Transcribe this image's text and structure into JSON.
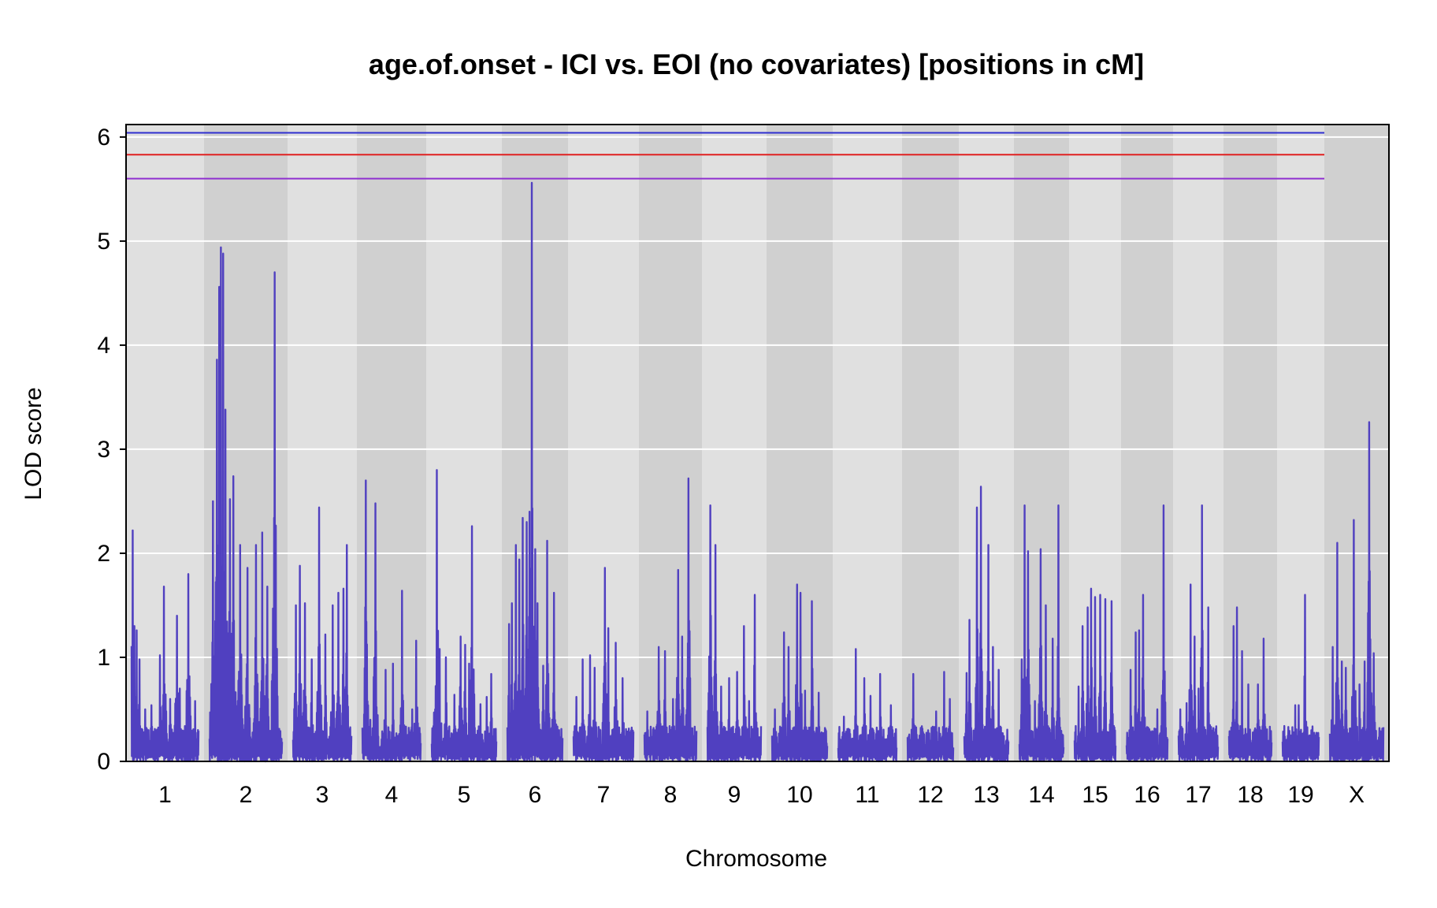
{
  "chart_data": {
    "type": "line",
    "title": "age.of.onset - ICI vs. EOI (no covariates) [positions in cM]",
    "xlabel": "Chromosome",
    "ylabel": "LOD score",
    "ylim": [
      0,
      6
    ],
    "yticks": [
      0,
      1,
      2,
      3,
      4,
      5,
      6
    ],
    "grid": true,
    "series_color": "#5040C0",
    "chromosomes": [
      {
        "name": "1",
        "peaks": [
          [
            0.02,
            2.22
          ],
          [
            0.04,
            1.3
          ],
          [
            0.08,
            1.26
          ],
          [
            0.12,
            0.98
          ],
          [
            0.2,
            0.5
          ],
          [
            0.3,
            0.54
          ],
          [
            0.42,
            1.02
          ],
          [
            0.48,
            1.68
          ],
          [
            0.58,
            0.6
          ],
          [
            0.68,
            1.4
          ],
          [
            0.72,
            0.7
          ],
          [
            0.85,
            1.8
          ],
          [
            0.95,
            0.58
          ]
        ]
      },
      {
        "name": "2",
        "peaks": [
          [
            0.05,
            2.5
          ],
          [
            0.1,
            3.86
          ],
          [
            0.13,
            4.56
          ],
          [
            0.16,
            4.94
          ],
          [
            0.19,
            4.88
          ],
          [
            0.22,
            3.38
          ],
          [
            0.28,
            2.52
          ],
          [
            0.33,
            2.74
          ],
          [
            0.42,
            2.08
          ],
          [
            0.52,
            1.86
          ],
          [
            0.64,
            2.08
          ],
          [
            0.73,
            2.2
          ],
          [
            0.8,
            1.68
          ],
          [
            0.9,
            4.7
          ]
        ]
      },
      {
        "name": "3",
        "peaks": [
          [
            0.05,
            1.5
          ],
          [
            0.12,
            1.88
          ],
          [
            0.2,
            1.52
          ],
          [
            0.32,
            0.98
          ],
          [
            0.45,
            2.44
          ],
          [
            0.55,
            1.22
          ],
          [
            0.68,
            1.5
          ],
          [
            0.78,
            1.62
          ],
          [
            0.86,
            1.66
          ],
          [
            0.92,
            2.08
          ]
        ]
      },
      {
        "name": "4",
        "peaks": [
          [
            0.06,
            2.7
          ],
          [
            0.14,
            0.4
          ],
          [
            0.22,
            2.48
          ],
          [
            0.4,
            0.88
          ],
          [
            0.52,
            0.94
          ],
          [
            0.68,
            1.64
          ],
          [
            0.85,
            0.5
          ],
          [
            0.92,
            1.16
          ]
        ]
      },
      {
        "name": "5",
        "peaks": [
          [
            0.05,
            0.5
          ],
          [
            0.08,
            2.8
          ],
          [
            0.12,
            1.08
          ],
          [
            0.22,
            1.0
          ],
          [
            0.35,
            0.64
          ],
          [
            0.45,
            1.2
          ],
          [
            0.52,
            1.12
          ],
          [
            0.58,
            0.94
          ],
          [
            0.62,
            2.26
          ],
          [
            0.75,
            0.55
          ],
          [
            0.85,
            0.62
          ],
          [
            0.92,
            0.84
          ]
        ]
      },
      {
        "name": "6",
        "peaks": [
          [
            0.03,
            1.32
          ],
          [
            0.08,
            1.52
          ],
          [
            0.15,
            2.08
          ],
          [
            0.22,
            1.94
          ],
          [
            0.28,
            2.34
          ],
          [
            0.35,
            2.3
          ],
          [
            0.4,
            2.4
          ],
          [
            0.44,
            5.56
          ],
          [
            0.5,
            2.04
          ],
          [
            0.55,
            1.52
          ],
          [
            0.65,
            0.92
          ],
          [
            0.72,
            2.12
          ],
          [
            0.85,
            1.62
          ]
        ]
      },
      {
        "name": "7",
        "peaks": [
          [
            0.05,
            0.62
          ],
          [
            0.15,
            0.98
          ],
          [
            0.28,
            1.02
          ],
          [
            0.35,
            0.9
          ],
          [
            0.52,
            1.86
          ],
          [
            0.58,
            1.28
          ],
          [
            0.7,
            1.14
          ],
          [
            0.82,
            0.8
          ]
        ]
      },
      {
        "name": "8",
        "peaks": [
          [
            0.05,
            0.48
          ],
          [
            0.2,
            0.3
          ],
          [
            0.28,
            1.1
          ],
          [
            0.4,
            1.06
          ],
          [
            0.55,
            0.6
          ],
          [
            0.65,
            1.84
          ],
          [
            0.72,
            1.2
          ],
          [
            0.85,
            2.72
          ]
        ]
      },
      {
        "name": "9",
        "peaks": [
          [
            0.05,
            2.46
          ],
          [
            0.15,
            2.08
          ],
          [
            0.25,
            0.72
          ],
          [
            0.4,
            0.8
          ],
          [
            0.55,
            0.86
          ],
          [
            0.68,
            1.3
          ],
          [
            0.78,
            0.58
          ],
          [
            0.88,
            1.6
          ]
        ]
      },
      {
        "name": "10",
        "peaks": [
          [
            0.05,
            0.5
          ],
          [
            0.22,
            1.24
          ],
          [
            0.3,
            1.1
          ],
          [
            0.45,
            1.7
          ],
          [
            0.52,
            1.62
          ],
          [
            0.6,
            0.68
          ],
          [
            0.72,
            1.54
          ],
          [
            0.85,
            0.66
          ]
        ]
      },
      {
        "name": "11",
        "peaks": [
          [
            0.1,
            0.43
          ],
          [
            0.3,
            1.08
          ],
          [
            0.45,
            0.8
          ],
          [
            0.55,
            0.63
          ],
          [
            0.72,
            0.84
          ],
          [
            0.9,
            0.54
          ]
        ]
      },
      {
        "name": "12",
        "peaks": [
          [
            0.12,
            0.84
          ],
          [
            0.3,
            0.2
          ],
          [
            0.45,
            0.3
          ],
          [
            0.62,
            0.48
          ],
          [
            0.8,
            0.86
          ],
          [
            0.92,
            0.6
          ]
        ]
      },
      {
        "name": "13",
        "peaks": [
          [
            0.05,
            0.85
          ],
          [
            0.12,
            1.36
          ],
          [
            0.28,
            2.44
          ],
          [
            0.38,
            2.64
          ],
          [
            0.55,
            2.08
          ],
          [
            0.65,
            1.1
          ],
          [
            0.78,
            0.88
          ]
        ]
      },
      {
        "name": "14",
        "peaks": [
          [
            0.05,
            0.98
          ],
          [
            0.12,
            2.46
          ],
          [
            0.2,
            2.02
          ],
          [
            0.35,
            0.58
          ],
          [
            0.48,
            2.04
          ],
          [
            0.6,
            1.5
          ],
          [
            0.75,
            1.18
          ],
          [
            0.88,
            2.46
          ]
        ]
      },
      {
        "name": "15",
        "peaks": [
          [
            0.1,
            0.72
          ],
          [
            0.2,
            1.3
          ],
          [
            0.32,
            1.48
          ],
          [
            0.4,
            1.66
          ],
          [
            0.5,
            1.58
          ],
          [
            0.62,
            1.6
          ],
          [
            0.75,
            1.56
          ],
          [
            0.9,
            1.54
          ]
        ]
      },
      {
        "name": "16",
        "peaks": [
          [
            0.1,
            0.88
          ],
          [
            0.22,
            1.24
          ],
          [
            0.3,
            1.26
          ],
          [
            0.4,
            1.6
          ],
          [
            0.75,
            0.5
          ],
          [
            0.9,
            2.46
          ]
        ]
      },
      {
        "name": "17",
        "peaks": [
          [
            0.05,
            0.5
          ],
          [
            0.2,
            0.56
          ],
          [
            0.3,
            1.7
          ],
          [
            0.4,
            1.2
          ],
          [
            0.5,
            0.7
          ],
          [
            0.6,
            2.46
          ],
          [
            0.75,
            1.48
          ],
          [
            0.88,
            0.32
          ]
        ]
      },
      {
        "name": "18",
        "peaks": [
          [
            0.1,
            1.3
          ],
          [
            0.18,
            1.48
          ],
          [
            0.3,
            1.06
          ],
          [
            0.45,
            0.74
          ],
          [
            0.6,
            0.3
          ],
          [
            0.68,
            0.74
          ],
          [
            0.82,
            1.18
          ]
        ]
      },
      {
        "name": "19",
        "peaks": [
          [
            0.05,
            0.34
          ],
          [
            0.35,
            0.54
          ],
          [
            0.45,
            0.54
          ],
          [
            0.62,
            1.6
          ],
          [
            0.75,
            0.25
          ],
          [
            0.9,
            0.2
          ]
        ]
      },
      {
        "name": "X",
        "peaks": [
          [
            0.05,
            1.1
          ],
          [
            0.14,
            2.1
          ],
          [
            0.22,
            0.96
          ],
          [
            0.3,
            0.9
          ],
          [
            0.45,
            2.32
          ],
          [
            0.55,
            0.74
          ],
          [
            0.65,
            0.96
          ],
          [
            0.73,
            3.26
          ],
          [
            0.82,
            1.04
          ],
          [
            0.93,
            0.32
          ]
        ]
      }
    ],
    "thresholds": [
      {
        "value": 6.04,
        "color": "#3030D0"
      },
      {
        "value": 5.83,
        "color": "#E02020"
      },
      {
        "value": 5.6,
        "color": "#9030D0"
      }
    ]
  }
}
